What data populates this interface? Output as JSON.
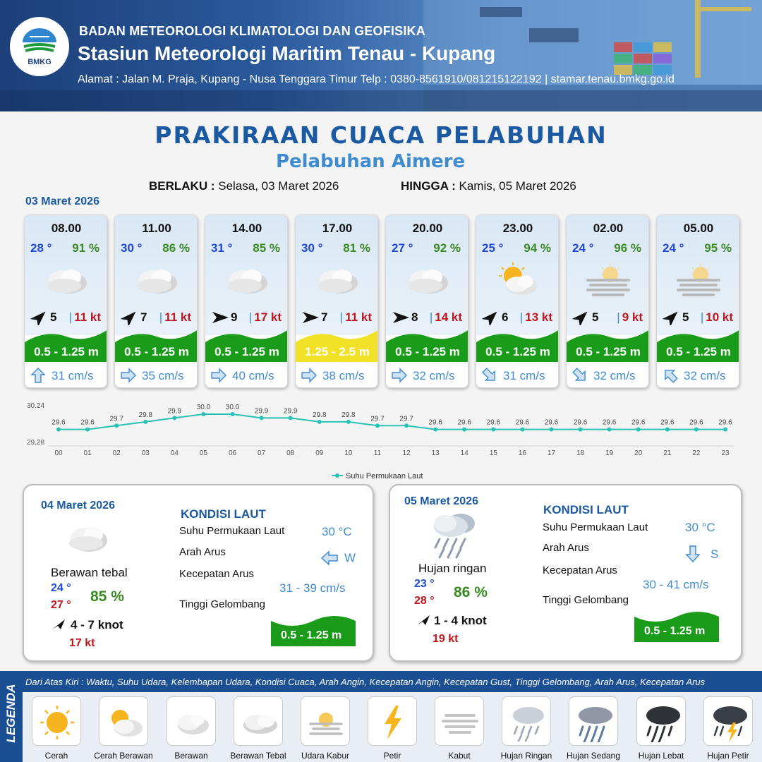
{
  "header": {
    "logo_text": "BMKG",
    "org": "BADAN METEOROLOGI KLIMATOLOGI DAN GEOFISIKA",
    "station": "Stasiun Meteorologi Maritim Tenau - Kupang",
    "address": "Alamat : Jalan M. Praja, Kupang - Nusa Tenggara Timur Telp : 0380-8561910/081215122192  | stamar.tenau.bmkg.go.id"
  },
  "title": "PRAKIRAAN CUACA PELABUHAN",
  "subtitle": "Pelabuhan Aimere",
  "validity": {
    "from_label": "BERLAKU :",
    "from_value": "Selasa, 03 Maret 2026",
    "to_label": "HINGGA :",
    "to_value": "Kamis, 05 Maret 2026"
  },
  "main_date": "03 Maret 2026",
  "cards": [
    {
      "time": "08.00",
      "temp": "28 °",
      "hum": "91 %",
      "weather": "Berawan Tebal",
      "wind_dir": "NE",
      "wind": "5",
      "gust": "11 kt",
      "wave": "0.5 - 1.25 m",
      "wave_color": "#1a9c1a",
      "cur_dir": "N",
      "current": "31 cm/s"
    },
    {
      "time": "11.00",
      "temp": "30 °",
      "hum": "86 %",
      "weather": "Berawan Tebal",
      "wind_dir": "NE",
      "wind": "7",
      "gust": "11 kt",
      "wave": "0.5 - 1.25 m",
      "wave_color": "#1a9c1a",
      "cur_dir": "E",
      "current": "35 cm/s"
    },
    {
      "time": "14.00",
      "temp": "31 °",
      "hum": "85 %",
      "weather": "Berawan Tebal",
      "wind_dir": "E",
      "wind": "9",
      "gust": "17 kt",
      "wave": "0.5 - 1.25 m",
      "wave_color": "#1a9c1a",
      "cur_dir": "E",
      "current": "40 cm/s"
    },
    {
      "time": "17.00",
      "temp": "30 °",
      "hum": "81 %",
      "weather": "Berawan Tebal",
      "wind_dir": "E",
      "wind": "7",
      "gust": "11 kt",
      "wave": "1.25 - 2.5 m",
      "wave_color": "#f2e227",
      "cur_dir": "E",
      "current": "38 cm/s"
    },
    {
      "time": "20.00",
      "temp": "27 °",
      "hum": "92 %",
      "weather": "Berawan Tebal",
      "wind_dir": "E",
      "wind": "8",
      "gust": "14 kt",
      "wave": "0.5 - 1.25 m",
      "wave_color": "#1a9c1a",
      "cur_dir": "E",
      "current": "32 cm/s"
    },
    {
      "time": "23.00",
      "temp": "25 °",
      "hum": "94 %",
      "weather": "Cerah Berawan",
      "wind_dir": "NE",
      "wind": "6",
      "gust": "13 kt",
      "wave": "0.5 - 1.25 m",
      "wave_color": "#1a9c1a",
      "cur_dir": "SE",
      "current": "31 cm/s"
    },
    {
      "time": "02.00",
      "temp": "24 °",
      "hum": "96 %",
      "weather": "Udara Kabur",
      "wind_dir": "NE",
      "wind": "5",
      "gust": "9 kt",
      "wave": "0.5 - 1.25 m",
      "wave_color": "#1a9c1a",
      "cur_dir": "SE",
      "current": "32 cm/s"
    },
    {
      "time": "05.00",
      "temp": "24 °",
      "hum": "95 %",
      "weather": "Udara Kabur",
      "wind_dir": "NE",
      "wind": "5",
      "gust": "10 kt",
      "wave": "0.5 - 1.25 m",
      "wave_color": "#1a9c1a",
      "cur_dir": "NW",
      "current": "32 cm/s"
    }
  ],
  "chart_data": {
    "type": "line",
    "x": [
      "00",
      "01",
      "02",
      "03",
      "04",
      "05",
      "06",
      "07",
      "08",
      "09",
      "10",
      "11",
      "12",
      "13",
      "14",
      "15",
      "16",
      "17",
      "18",
      "19",
      "20",
      "21",
      "22",
      "23"
    ],
    "series": [
      {
        "name": "Suhu Permukaan Laut",
        "values": [
          29.6,
          29.6,
          29.7,
          29.8,
          29.9,
          30.0,
          30.0,
          29.9,
          29.9,
          29.8,
          29.8,
          29.7,
          29.7,
          29.6,
          29.6,
          29.6,
          29.6,
          29.6,
          29.6,
          29.6,
          29.6,
          29.6,
          29.6,
          29.6
        ]
      }
    ],
    "ylim": [
      29.28,
      30.24
    ],
    "ytick_labels": [
      "30.24",
      "29.28"
    ],
    "point_labels": [
      "29.6",
      "29.6",
      "29.7",
      "29.8",
      "29.9",
      "30.0",
      "30.0",
      "29.9",
      "29.9",
      "29.8",
      "29.8",
      "29.7",
      "29.7",
      "29.6",
      "29.6",
      "29.6",
      "29.6",
      "29.6",
      "29.6",
      "29.6",
      "29.6",
      "29.6",
      "29.6",
      "29.6"
    ],
    "color": "#28c2b5",
    "legend_position": "bottom"
  },
  "day2": {
    "date": "04 Maret 2026",
    "condition": "Berawan tebal",
    "tmin": "24 °",
    "tmax": "27 °",
    "hum": "85 %",
    "wind": "4  - 7 knot",
    "gust": "17 kt",
    "sea_heading": "KONDISI LAUT",
    "sst_label": "Suhu Permukaan Laut",
    "sst": "30 °C",
    "dir_label": "Arah Arus",
    "dir": "W",
    "speed_label": "Kecepatan Arus",
    "speed": "31 - 39 cm/s",
    "wave_label": "Tinggi Gelombang",
    "wave": "0.5 - 1.25 m"
  },
  "day3": {
    "date": "05 Maret 2026",
    "condition": "Hujan ringan",
    "tmin": "23 °",
    "tmax": "28 °",
    "hum": "86 %",
    "wind": "1  - 4 knot",
    "gust": "19 kt",
    "sea_heading": "KONDISI LAUT",
    "sst_label": "Suhu Permukaan Laut",
    "sst": "30 °C",
    "dir_label": "Arah Arus",
    "dir": "S",
    "speed_label": "Kecepatan Arus",
    "speed": "30 - 41 cm/s",
    "wave_label": "Tinggi Gelombang",
    "wave": "0.5 - 1.25 m"
  },
  "legend": {
    "side": "LEGENDA",
    "desc": "Dari Atas Kiri : Waktu, Suhu Udara, Kelembapan Udara, Kondisi Cuaca, Arah Angin, Kecepatan Angin, Kecepatan Gust, Tinggi Gelombang, Arah Arus, Kecepatan Arus",
    "items": [
      "Cerah",
      "Cerah Berawan",
      "Berawan",
      "Berawan Tebal",
      "Udara Kabur",
      "Petir",
      "Kabut",
      "Hujan Ringan",
      "Hujan Sedang",
      "Hujan Lebat",
      "Hujan Petir"
    ]
  }
}
